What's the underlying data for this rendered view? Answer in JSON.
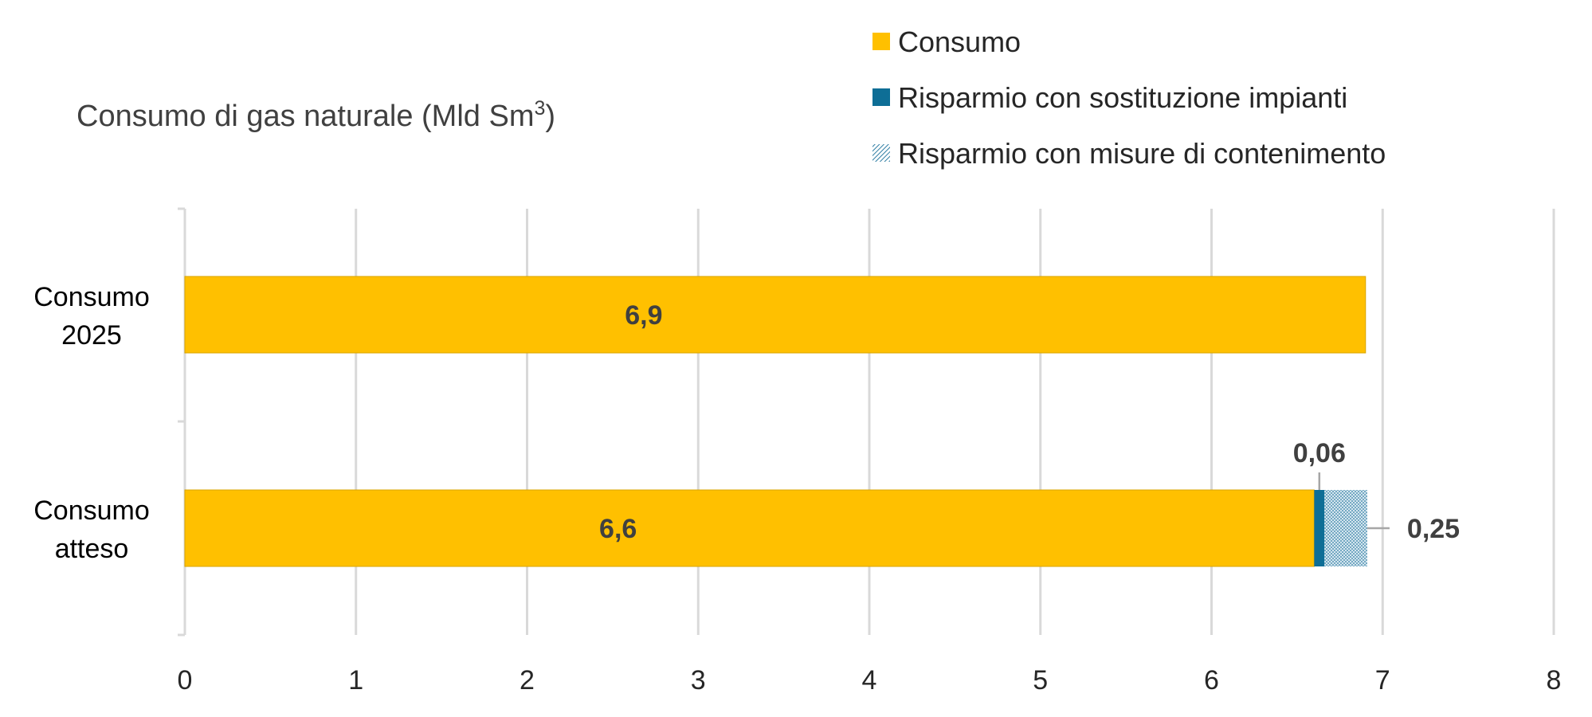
{
  "chart_data": {
    "type": "bar",
    "orientation": "horizontal",
    "stacked": true,
    "title": "Consumo di gas naturale (Mld Sm",
    "title_superscript": "3",
    "title_close": ")",
    "categories": [
      {
        "lines": [
          "Consumo",
          "2025"
        ]
      },
      {
        "lines": [
          "Consumo",
          "atteso"
        ]
      }
    ],
    "series": [
      {
        "name": "Consumo",
        "color": "#FFC000",
        "pattern": "solid",
        "values": [
          6.9,
          6.6
        ],
        "labels": [
          "6,9",
          "6,6"
        ]
      },
      {
        "name": "Risparmio con sostituzione impianti",
        "color": "#0E6E96",
        "pattern": "solid",
        "values": [
          0,
          0.06
        ],
        "labels": [
          "",
          "0,06"
        ]
      },
      {
        "name": "Risparmio con misure di contenimento",
        "color": "#2E7DA3",
        "pattern": "dots",
        "values": [
          0,
          0.25
        ],
        "labels": [
          "",
          "0,25"
        ]
      }
    ],
    "xlim": [
      0,
      8
    ],
    "xticks": [
      "0",
      "1",
      "2",
      "3",
      "4",
      "5",
      "6",
      "7",
      "8"
    ],
    "grid": "vertical",
    "legend_position": "top-right"
  }
}
